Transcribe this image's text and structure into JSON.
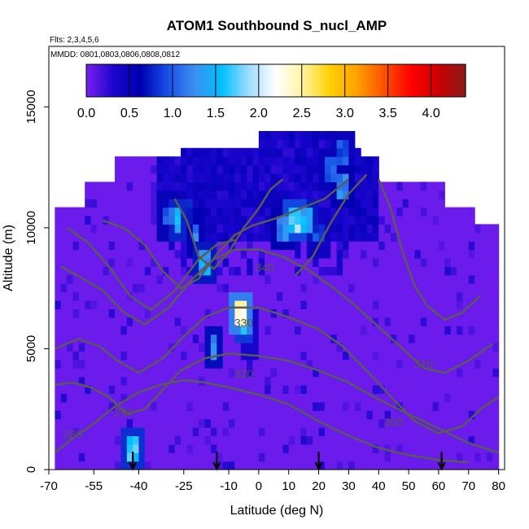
{
  "chart_data": {
    "type": "heatmap",
    "title": "ATOM1 Southbound S_nucl_AMP",
    "subtitle_flights": "Flts: 2,3,4,5,6",
    "subtitle_dates": "MMDD: 0801,0803,0806,0808,0812",
    "xlabel": "Latitude (deg N)",
    "ylabel": "Altitude (m)",
    "xlim": [
      -70,
      82
    ],
    "ylim": [
      0,
      17500
    ],
    "x_ticks": [
      -70,
      -55,
      -40,
      -25,
      -10,
      0,
      10,
      20,
      30,
      40,
      50,
      60,
      70,
      80
    ],
    "y_ticks": [
      0,
      5000,
      10000,
      15000
    ],
    "colorbar": {
      "range": [
        0,
        4.4
      ],
      "ticks": [
        0.0,
        0.5,
        1.0,
        1.5,
        2.0,
        2.5,
        3.0,
        3.5,
        4.0
      ],
      "tick_labels": [
        "0.0",
        "0.5",
        "1.0",
        "1.5",
        "2.0",
        "2.5",
        "3.0",
        "3.5",
        "4.0"
      ],
      "colors": [
        "#7a1ff0",
        "#1c06d0",
        "#0000b0",
        "#1650e8",
        "#3d8ff0",
        "#00bfff",
        "#9fdcff",
        "#ffffff",
        "#fff3a0",
        "#ffd000",
        "#ffa000",
        "#ff5000",
        "#ff0000",
        "#cc0000",
        "#8b1a1a"
      ]
    },
    "background_value": 0.05,
    "domain_extent": [
      {
        "alt": 0,
        "lat_min": -68,
        "lat_max": 80
      },
      {
        "alt": 10300,
        "lat_min": -68,
        "lat_max": 72
      },
      {
        "alt": 11000,
        "lat_min": -58,
        "lat_max": 62
      },
      {
        "alt": 12000,
        "lat_min": -48,
        "lat_max": 40
      },
      {
        "alt": 12800,
        "lat_min": -25,
        "lat_max": 33
      },
      {
        "alt": 13300,
        "lat_min": 0,
        "lat_max": 32
      }
    ],
    "high_value_cells": [
      {
        "lat": -42.5,
        "alt": 750,
        "value": 1.8
      },
      {
        "lat": -33,
        "alt": 11000,
        "value": 0.4
      },
      {
        "lat": -30,
        "alt": 10500,
        "value": 1.2
      },
      {
        "lat": -27,
        "alt": 10200,
        "value": 1.7
      },
      {
        "lat": -24,
        "alt": 10800,
        "value": 0.9
      },
      {
        "lat": -21,
        "alt": 9800,
        "value": 1.3
      },
      {
        "lat": -18,
        "alt": 8600,
        "value": 1.6
      },
      {
        "lat": -16,
        "alt": 11600,
        "value": 0.5
      },
      {
        "lat": -6.5,
        "alt": 6600,
        "value": 2.6
      },
      {
        "lat": -5,
        "alt": 6200,
        "value": 1.9
      },
      {
        "lat": -3,
        "alt": 5600,
        "value": 0.8
      },
      {
        "lat": -15,
        "alt": 5000,
        "value": 1.5
      },
      {
        "lat": 8,
        "alt": 10000,
        "value": 1.4
      },
      {
        "lat": 12,
        "alt": 10400,
        "value": 2.0
      },
      {
        "lat": 16,
        "alt": 10200,
        "value": 1.6
      },
      {
        "lat": 20,
        "alt": 9800,
        "value": 1.0
      },
      {
        "lat": 24,
        "alt": 12300,
        "value": 1.2
      },
      {
        "lat": 28,
        "alt": 13000,
        "value": 1.1
      },
      {
        "lat": 28,
        "alt": 11800,
        "value": 1.4
      },
      {
        "lat": 36,
        "alt": 12500,
        "value": 0.4
      },
      {
        "lat": 5,
        "alt": 11800,
        "value": 0.4
      },
      {
        "lat": -10,
        "alt": 12200,
        "value": 0.45
      }
    ],
    "contours": [
      {
        "label": "280",
        "label_at": [
          -62,
          1300
        ],
        "points": [
          [
            -68,
            700
          ],
          [
            -62,
            1300
          ],
          [
            -55,
            1900
          ],
          [
            -48,
            2600
          ],
          [
            -40,
            3200
          ],
          [
            -33,
            3500
          ],
          [
            -25,
            3700
          ],
          [
            -18,
            3600
          ],
          [
            -10,
            3400
          ],
          [
            0,
            3100
          ],
          [
            10,
            2700
          ],
          [
            20,
            2000
          ],
          [
            30,
            1400
          ],
          [
            40,
            900
          ],
          [
            50,
            600
          ],
          [
            60,
            400
          ],
          [
            70,
            300
          ]
        ]
      },
      {
        "label": "290",
        "label_at": [
          -45,
          2200
        ],
        "points": [
          [
            -68,
            3500
          ],
          [
            -62,
            3600
          ],
          [
            -56,
            3400
          ],
          [
            -50,
            3000
          ],
          [
            -44,
            2300
          ],
          [
            -38,
            2500
          ],
          [
            -32,
            3300
          ],
          [
            -26,
            4100
          ],
          [
            -18,
            4600
          ],
          [
            -10,
            4800
          ],
          [
            0,
            4700
          ],
          [
            10,
            4500
          ],
          [
            20,
            4100
          ],
          [
            30,
            3600
          ],
          [
            40,
            2900
          ],
          [
            50,
            2300
          ],
          [
            60,
            1700
          ],
          [
            70,
            1100
          ],
          [
            80,
            700
          ]
        ]
      },
      {
        "label": "300",
        "label_at": [
          45,
          1800
        ],
        "points": [
          [
            -68,
            5000
          ],
          [
            -60,
            5400
          ],
          [
            -53,
            5100
          ],
          [
            -47,
            4500
          ],
          [
            -40,
            4000
          ],
          [
            -32,
            4600
          ],
          [
            -25,
            5500
          ],
          [
            -18,
            6300
          ],
          [
            -10,
            6700
          ],
          [
            0,
            6700
          ],
          [
            10,
            6300
          ],
          [
            20,
            5800
          ],
          [
            28,
            5100
          ],
          [
            36,
            4100
          ],
          [
            45,
            2900
          ],
          [
            52,
            2000
          ],
          [
            60,
            1500
          ],
          [
            68,
            1800
          ],
          [
            75,
            2600
          ],
          [
            80,
            3000
          ]
        ]
      },
      {
        "label": "310",
        "label_at": [
          55,
          4200
        ],
        "points": [
          [
            -66,
            8400
          ],
          [
            -60,
            8000
          ],
          [
            -52,
            7400
          ],
          [
            -45,
            6500
          ],
          [
            -38,
            6000
          ],
          [
            -30,
            6700
          ],
          [
            -22,
            7900
          ],
          [
            -15,
            8700
          ],
          [
            -8,
            9100
          ],
          [
            0,
            9100
          ],
          [
            8,
            8800
          ],
          [
            16,
            8300
          ],
          [
            24,
            7600
          ],
          [
            32,
            6800
          ],
          [
            40,
            5900
          ],
          [
            48,
            5000
          ],
          [
            55,
            4200
          ],
          [
            62,
            4000
          ],
          [
            70,
            4500
          ],
          [
            78,
            5200
          ]
        ]
      },
      {
        "label": "320",
        "label_at": [
          -5,
          3800
        ],
        "points": [
          [
            -64,
            10000
          ],
          [
            -57,
            9400
          ],
          [
            -50,
            8400
          ],
          [
            -43,
            7200
          ],
          [
            -36,
            6600
          ],
          [
            -28,
            7400
          ],
          [
            -20,
            8700
          ],
          [
            -14,
            9300
          ],
          [
            -8,
            9500
          ]
        ]
      },
      {
        "label": "330",
        "label_at": [
          -5,
          5900
        ],
        "points": [
          [
            -52,
            10300
          ],
          [
            -45,
            10000
          ],
          [
            -38,
            9300
          ],
          [
            -32,
            8200
          ],
          [
            -26,
            7500
          ],
          [
            -20,
            7900
          ],
          [
            -14,
            8900
          ],
          [
            -8,
            9700
          ],
          [
            -2,
            10100
          ],
          [
            6,
            10400
          ],
          [
            14,
            10800
          ],
          [
            22,
            11200
          ],
          [
            30,
            12000
          ]
        ]
      },
      {
        "label": "340",
        "label_at": [
          2,
          8200
        ],
        "points": [
          [
            -28,
            11200
          ],
          [
            -24,
            10300
          ],
          [
            -20,
            8800
          ],
          [
            -15,
            8300
          ],
          [
            -10,
            9000
          ],
          [
            -5,
            10000
          ],
          [
            0,
            10800
          ],
          [
            4,
            11600
          ],
          [
            8,
            12000
          ]
        ]
      },
      {
        "label": "",
        "label_at": null,
        "points": [
          [
            12,
            8000
          ],
          [
            18,
            8800
          ],
          [
            24,
            10200
          ],
          [
            30,
            11400
          ],
          [
            36,
            12200
          ]
        ]
      },
      {
        "label": "",
        "label_at": null,
        "points": [
          [
            40,
            12000
          ],
          [
            44,
            10800
          ],
          [
            48,
            9000
          ],
          [
            52,
            7600
          ],
          [
            56,
            6800
          ],
          [
            62,
            6200
          ],
          [
            68,
            6500
          ],
          [
            74,
            7200
          ]
        ]
      }
    ],
    "flight_arrows_lat": [
      -42,
      -14,
      20,
      61
    ]
  }
}
